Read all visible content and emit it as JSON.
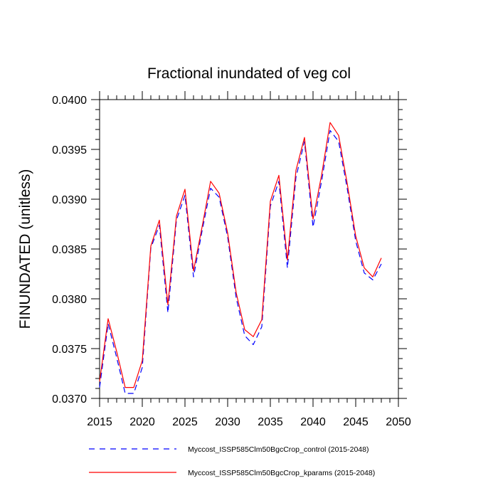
{
  "chart_data": {
    "type": "line",
    "title": "Fractional inundated of veg col",
    "xlabel": "",
    "ylabel": "FINUNDATED  (unitless)",
    "xlim": [
      2015,
      2050
    ],
    "ylim": [
      0.037,
      0.04
    ],
    "x_ticks": [
      2015,
      2020,
      2025,
      2030,
      2035,
      2040,
      2045,
      2050
    ],
    "y_ticks": [
      0.037,
      0.0375,
      0.038,
      0.0385,
      0.039,
      0.0395,
      0.04
    ],
    "y_tick_labels": [
      "0.0370",
      "0.0375",
      "0.0380",
      "0.0385",
      "0.0390",
      "0.0395",
      "0.0400"
    ],
    "grid": false,
    "legend_position": "bottom",
    "x": [
      2015,
      2016,
      2017,
      2018,
      2019,
      2020,
      2021,
      2022,
      2023,
      2024,
      2025,
      2026,
      2027,
      2028,
      2029,
      2030,
      2031,
      2032,
      2033,
      2034,
      2035,
      2036,
      2037,
      2038,
      2039,
      2040,
      2041,
      2042,
      2043,
      2044,
      2045,
      2046,
      2047,
      2048
    ],
    "series": [
      {
        "name": "Myccost_ISSP585Clm50BgcCrop_control (2015-2048)",
        "color": "#0000ff",
        "style": "dashed",
        "values": [
          0.03711,
          0.03775,
          0.03741,
          0.03705,
          0.03705,
          0.03731,
          0.03851,
          0.03874,
          0.03786,
          0.03879,
          0.03904,
          0.03822,
          0.03868,
          0.03911,
          0.03902,
          0.03862,
          0.03801,
          0.03763,
          0.03754,
          0.03772,
          0.03893,
          0.03918,
          0.03831,
          0.03922,
          0.03958,
          0.03872,
          0.03918,
          0.03969,
          0.03958,
          0.03911,
          0.03858,
          0.03826,
          0.03819,
          0.03835
        ]
      },
      {
        "name": "Myccost_ISSP585Clm50BgcCrop_kparams (2015-2048)",
        "color": "#ff0000",
        "style": "solid",
        "values": [
          0.03717,
          0.0378,
          0.03747,
          0.03711,
          0.03711,
          0.03738,
          0.03853,
          0.03879,
          0.03794,
          0.03883,
          0.0391,
          0.03828,
          0.03872,
          0.03918,
          0.03906,
          0.03866,
          0.03806,
          0.03769,
          0.03762,
          0.03779,
          0.03898,
          0.03924,
          0.03839,
          0.03929,
          0.03962,
          0.0388,
          0.03924,
          0.03977,
          0.03964,
          0.03916,
          0.03863,
          0.03831,
          0.03822,
          0.03841
        ]
      }
    ]
  }
}
